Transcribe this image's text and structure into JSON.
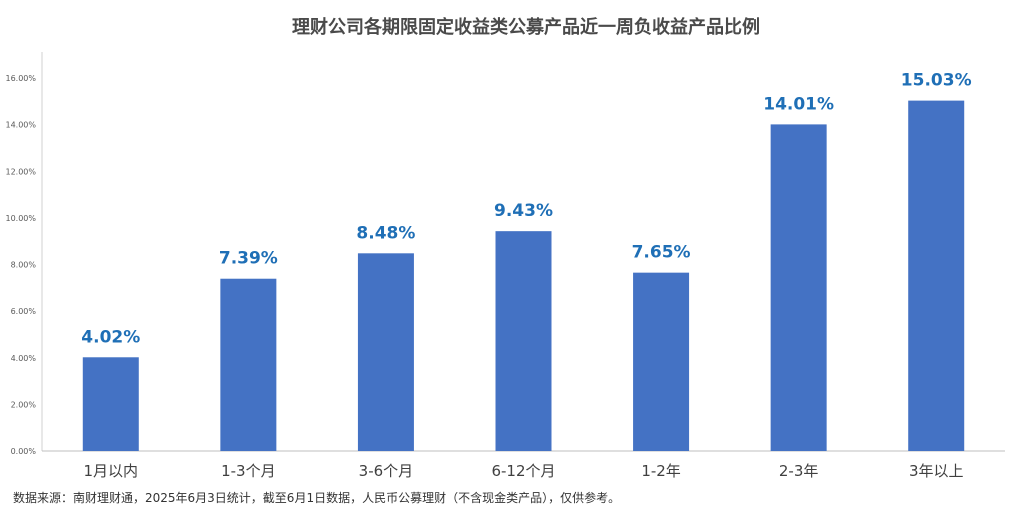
{
  "chart_data": {
    "type": "bar",
    "title": "理财公司各期限固定收益类公募产品近一周负收益产品比例",
    "categories": [
      "1月以内",
      "1-3个月",
      "3-6个月",
      "6-12个月",
      "1-2年",
      "2-3年",
      "3年以上"
    ],
    "values": [
      4.02,
      7.39,
      8.48,
      9.43,
      7.65,
      14.01,
      15.03
    ],
    "data_labels": [
      "4.02%",
      "7.39%",
      "8.48%",
      "9.43%",
      "7.65%",
      "14.01%",
      "15.03%"
    ],
    "ylim": [
      0,
      16
    ],
    "yticks": [
      "0.00%",
      "2.00%",
      "4.00%",
      "6.00%",
      "8.00%",
      "10.00%",
      "12.00%",
      "14.00%",
      "16.00%"
    ],
    "xlabel": "",
    "ylabel": "",
    "grid": false,
    "bar_color": "#4472c4",
    "label_color": "#1f6fb6"
  },
  "source_note": "数据来源：南财理财通，2025年6月3日统计，截至6月1日数据，人民币公募理财（不含现金类产品），仅供参考。"
}
